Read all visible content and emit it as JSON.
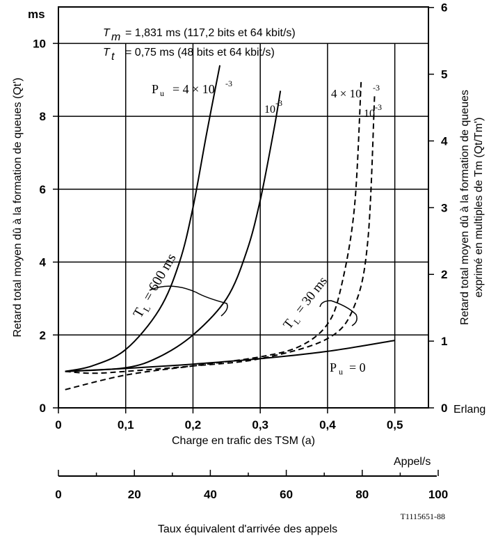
{
  "chart_data": {
    "type": "line",
    "y_unit": "ms",
    "x_unit": "Erlang",
    "xlabel": "Charge en trafic des TSM (a)",
    "ylabel_left": "Retard total moyen dû à la formation de queues (Qt')",
    "ylabel_right_line1": "Retard total moyen dû à la formation de queues",
    "ylabel_right_line2": "exprimé en multiples de Tm (Qt/Tm')",
    "xlim": [
      0,
      0.55
    ],
    "ylim": [
      0,
      11
    ],
    "x_ticks": [
      "0",
      "0,1",
      "0,2",
      "0,3",
      "0,4",
      "0,5"
    ],
    "y_ticks_left": [
      "0",
      "2",
      "4",
      "6",
      "8",
      "10"
    ],
    "y_ticks_right": [
      "0",
      "1",
      "2",
      "3",
      "4",
      "5",
      "6"
    ],
    "grid": true,
    "annotations": {
      "tm_sym": "T",
      "tm_sub": "m",
      "tm_text": "= 1,831 ms (117,2 bits et 64 kbit/s)",
      "tt_sym": "T",
      "tt_sub": "t",
      "tt_text": "= 0,75 ms (48 bits et 64 kbit/s)",
      "pu_4e3": "Pu = 4 × 10-3",
      "pu_4e3_main": "P",
      "pu_4e3_sub": "u",
      "pu_4e3_rest": "= 4 × 10",
      "pu_4e3_exp": "-3",
      "pu_1e3_solid": "10-3",
      "pu_1e3_solid_main": "10",
      "pu_1e3_solid_exp": "-3",
      "pu_4e3_dashed": "4 × 10-3",
      "pu_4e3_dashed_main": "4 × 10",
      "pu_4e3_dashed_exp": "-3",
      "pu_1e3_dashed": "10-3",
      "pu_1e3_dashed_main": "10",
      "pu_1e3_dashed_exp": "-3",
      "tl_600_main": "T",
      "tl_600_sub": "L",
      "tl_600_rest": "= 600 ms",
      "tl_30_main": "T",
      "tl_30_sub": "L",
      "tl_30_rest": "= 30 ms",
      "pu_0_main": "P",
      "pu_0_sub": "u",
      "pu_0_rest": "= 0"
    },
    "series": [
      {
        "style": "solid",
        "x": [
          0.01,
          0.05,
          0.1,
          0.15,
          0.18,
          0.2,
          0.22,
          0.24
        ],
        "y": [
          1.0,
          1.15,
          1.6,
          2.7,
          4.0,
          5.5,
          7.5,
          9.4
        ]
      },
      {
        "style": "solid",
        "x": [
          0.01,
          0.1,
          0.15,
          0.2,
          0.25,
          0.28,
          0.3,
          0.32,
          0.33
        ],
        "y": [
          1.0,
          1.1,
          1.4,
          2.0,
          3.0,
          4.3,
          5.7,
          7.6,
          8.7
        ]
      },
      {
        "style": "solid",
        "x": [
          0.01,
          0.1,
          0.2,
          0.3,
          0.4,
          0.5
        ],
        "y": [
          1.0,
          1.08,
          1.2,
          1.35,
          1.55,
          1.85
        ]
      },
      {
        "style": "dashed",
        "x": [
          0.01,
          0.1,
          0.2,
          0.3,
          0.36,
          0.4,
          0.42,
          0.44,
          0.45
        ],
        "y": [
          0.5,
          0.9,
          1.15,
          1.4,
          1.7,
          2.3,
          3.3,
          5.5,
          9.0
        ]
      },
      {
        "style": "dashed",
        "x": [
          0.01,
          0.05,
          0.1,
          0.2,
          0.3,
          0.4,
          0.44,
          0.46,
          0.47
        ],
        "y": [
          1.0,
          0.95,
          1.0,
          1.15,
          1.35,
          1.9,
          2.8,
          4.6,
          8.6
        ]
      }
    ]
  },
  "secondary_axis": {
    "unit": "Appel/s",
    "ticks": [
      "0",
      "20",
      "40",
      "60",
      "80",
      "100"
    ],
    "label": "Taux équivalent d'arrivée des appels"
  },
  "figure_code": "T1115651-88"
}
